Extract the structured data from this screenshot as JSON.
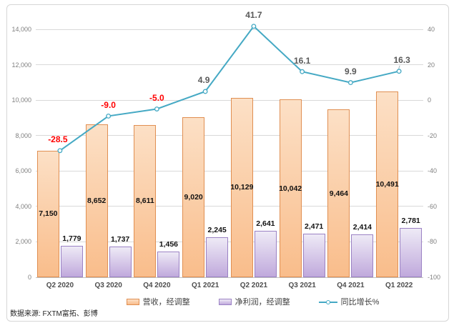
{
  "chart_data": {
    "type": "combo-bar-line",
    "categories": [
      "Q2 2020",
      "Q3 2020",
      "Q4 2020",
      "Q1 2021",
      "Q2 2021",
      "Q3 2021",
      "Q4 2021",
      "Q1 2022"
    ],
    "series": [
      {
        "name": "营收，经调整",
        "type": "bar",
        "axis": "left",
        "values": [
          7150,
          8652,
          8611,
          9020,
          10129,
          10042,
          9464,
          10491
        ],
        "labels": [
          "7,150",
          "8,652",
          "8,611",
          "9,020",
          "10,129",
          "10,042",
          "9,464",
          "10,491"
        ],
        "color_top": "#fce0c6",
        "color_bottom": "#f9bd8b",
        "border": "#e08f52"
      },
      {
        "name": "净利润，经调整",
        "type": "bar",
        "axis": "left",
        "values": [
          1779,
          1737,
          1456,
          2245,
          2641,
          2471,
          2414,
          2781
        ],
        "labels": [
          "1,779",
          "1,737",
          "1,456",
          "2,245",
          "2,641",
          "2,471",
          "2,414",
          "2,781"
        ],
        "color_top": "#eeeaf6",
        "color_bottom": "#c0a9dc",
        "border": "#9b82c4"
      },
      {
        "name": "同比增长%",
        "type": "line",
        "axis": "right",
        "values": [
          -28.5,
          -9.0,
          -5.0,
          4.9,
          41.7,
          16.1,
          9.9,
          16.3
        ],
        "labels": [
          "-28.5",
          "-9.0",
          "-5.0",
          "4.9",
          "41.7",
          "16.1",
          "9.9",
          "16.3"
        ],
        "color": "#45a9c4",
        "marker_fill": "#ffffff"
      }
    ],
    "left_axis": {
      "min": 0,
      "max": 14000,
      "step": 2000,
      "tick_labels": [
        "0",
        "2,000",
        "4,000",
        "6,000",
        "8,000",
        "10,000",
        "12,000",
        "14,000"
      ]
    },
    "right_axis": {
      "min": -100,
      "max": 40,
      "step": 20,
      "tick_labels": [
        "40",
        "20",
        "0",
        "-20",
        "-40",
        "-60",
        "-80",
        "-100"
      ]
    },
    "label_colors": {
      "negative": "#ff0000",
      "positive": "#595959"
    },
    "grid": "horizontal",
    "legend_position": "bottom"
  },
  "legend": {
    "items": [
      {
        "label": "营收，经调整"
      },
      {
        "label": "净利润，经调整"
      },
      {
        "label": "同比增长%"
      }
    ]
  },
  "source_note": "数据来源: FXTM富拓、彭博"
}
